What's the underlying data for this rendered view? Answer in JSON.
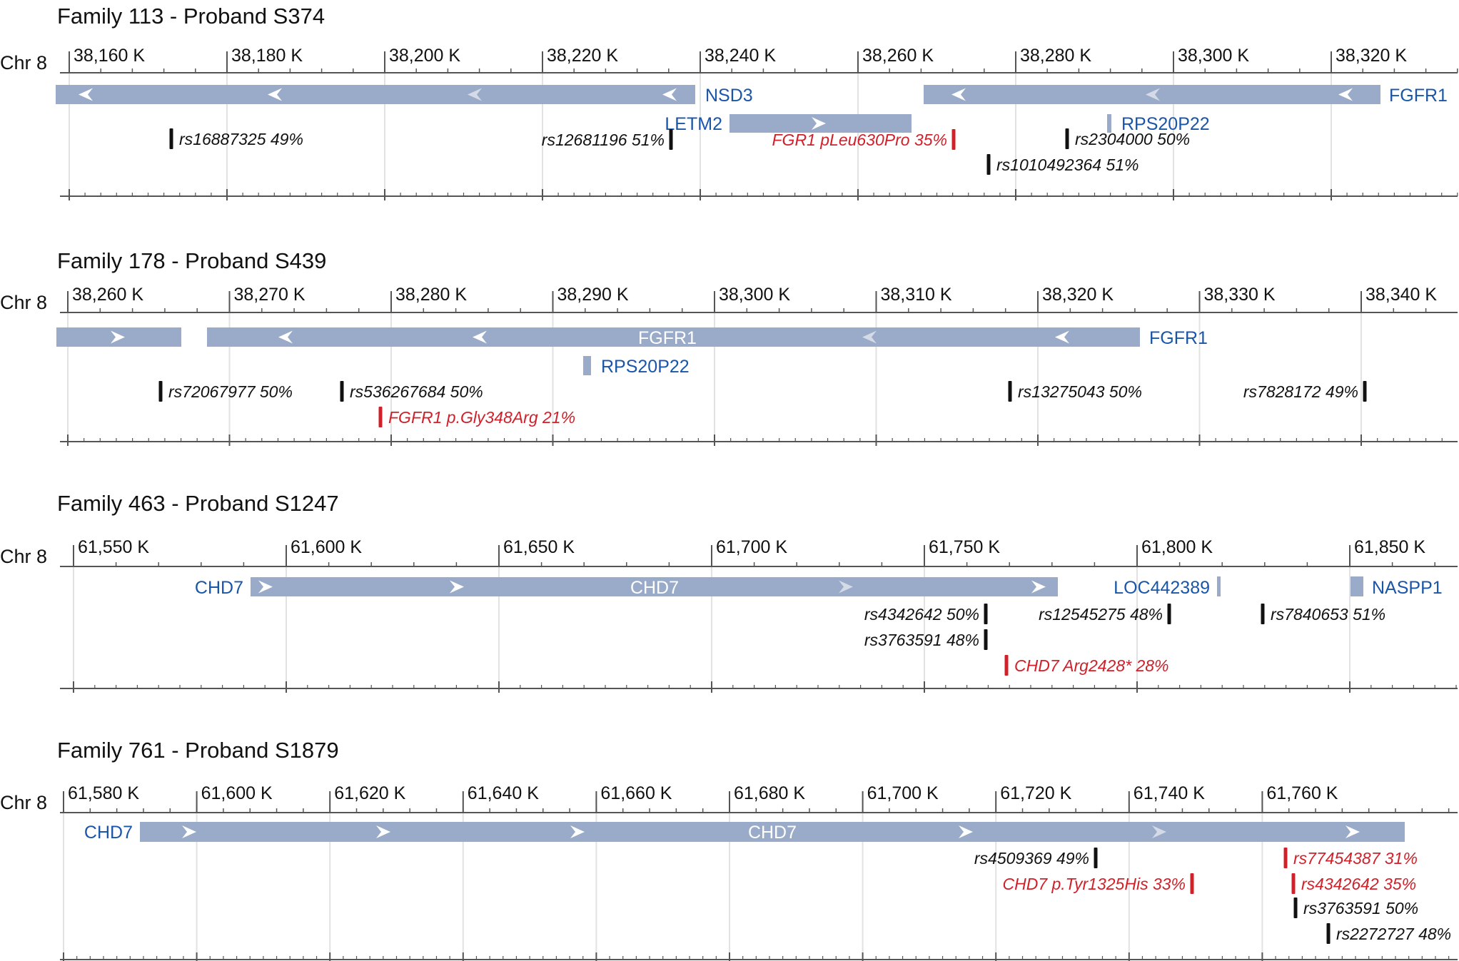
{
  "colors": {
    "gene_bar": "#9aabc9",
    "gene_label": "#1a56a8",
    "variant": "#111111",
    "variant_highlight": "#d0202a",
    "axis": "#555555",
    "grid": "#e2e2e2",
    "arrow": "#ffffff"
  },
  "panels": [
    {
      "title": "Family 113 - Proband S374",
      "chrom": "Chr 8",
      "ticks": [
        "38,160 K",
        "38,180 K",
        "38,200 K",
        "38,220 K",
        "38,240 K",
        "38,260 K",
        "38,280 K",
        "38,300 K",
        "38,320 K"
      ],
      "genes": [
        {
          "name": "NSD3",
          "strand": "-",
          "row": 1
        },
        {
          "name": "FGFR1",
          "strand": "-",
          "row": 1
        },
        {
          "name": "LETM2",
          "strand": "+",
          "row": 2
        },
        {
          "name": "RPS20P22",
          "strand": "",
          "row": 2
        }
      ],
      "variants": [
        {
          "label": "rs16887325 49%",
          "highlight": false
        },
        {
          "label": "rs12681196 51%",
          "highlight": false
        },
        {
          "label": "FGR1 pLeu630Pro 35%",
          "highlight": true
        },
        {
          "label": "rs2304000 50%",
          "highlight": false
        },
        {
          "label": "rs1010492364 51%",
          "highlight": false
        }
      ]
    },
    {
      "title": "Family 178 - Proband S439",
      "chrom": "Chr 8",
      "ticks": [
        "38,260 K",
        "38,270 K",
        "38,280 K",
        "38,290 K",
        "38,300 K",
        "38,310 K",
        "38,320 K",
        "38,330 K",
        "38,340 K"
      ],
      "genes": [
        {
          "name": "",
          "strand": "+",
          "row": 1
        },
        {
          "name": "FGFR1",
          "strand": "-",
          "row": 1
        },
        {
          "name": "FGFR1",
          "strand": "-",
          "row": 1
        },
        {
          "name": "RPS20P22",
          "strand": "",
          "row": 2
        }
      ],
      "variants": [
        {
          "label": "rs72067977 50%",
          "highlight": false
        },
        {
          "label": "rs536267684 50%",
          "highlight": false
        },
        {
          "label": "FGFR1 p.Gly348Arg 21%",
          "highlight": true
        },
        {
          "label": "rs13275043 50%",
          "highlight": false
        },
        {
          "label": "rs7828172 49%",
          "highlight": false
        }
      ]
    },
    {
      "title": "Family 463 - Proband S1247",
      "chrom": "Chr 8",
      "ticks": [
        "61,550 K",
        "61,600 K",
        "61,650 K",
        "61,700 K",
        "61,750 K",
        "61,800 K",
        "61,850 K"
      ],
      "genes": [
        {
          "name": "CHD7",
          "strand": "+",
          "row": 1
        },
        {
          "name": "CHD7",
          "strand": "+",
          "row": 1
        },
        {
          "name": "LOC442389",
          "strand": "",
          "row": 1
        },
        {
          "name": "NASPP1",
          "strand": "",
          "row": 1
        }
      ],
      "variants": [
        {
          "label": "rs4342642 50%",
          "highlight": false
        },
        {
          "label": "rs12545275 48%",
          "highlight": false
        },
        {
          "label": "rs7840653 51%",
          "highlight": false
        },
        {
          "label": "rs3763591 48%",
          "highlight": false
        },
        {
          "label": "CHD7 Arg2428* 28%",
          "highlight": true
        }
      ]
    },
    {
      "title": "Family 761 - Proband S1879",
      "chrom": "Chr 8",
      "ticks": [
        "61,580 K",
        "61,600 K",
        "61,620 K",
        "61,640 K",
        "61,660 K",
        "61,680 K",
        "61,700 K",
        "61,720 K",
        "61,740 K",
        "61,760 K"
      ],
      "genes": [
        {
          "name": "CHD7",
          "strand": "+",
          "row": 1
        },
        {
          "name": "CHD7",
          "strand": "+",
          "row": 1
        }
      ],
      "variants": [
        {
          "label": "rs4509369 49%",
          "highlight": false
        },
        {
          "label": "rs77454387 31%",
          "highlight": true
        },
        {
          "label": "rs4342642 35%",
          "highlight": true
        },
        {
          "label": "CHD7 p.Tyr1325His 33%",
          "highlight": true
        },
        {
          "label": "rs3763591 50%",
          "highlight": false
        },
        {
          "label": "rs2272727 48%",
          "highlight": false
        }
      ]
    }
  ]
}
